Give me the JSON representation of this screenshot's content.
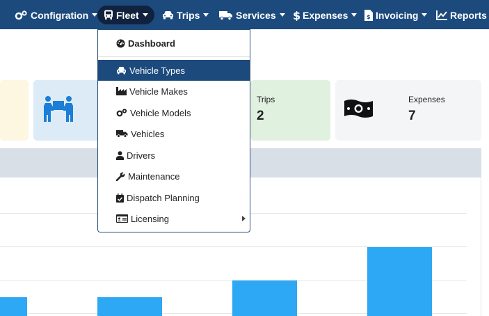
{
  "nav": {
    "items": [
      {
        "label": "Configration",
        "icon": "gears-icon"
      },
      {
        "label": "Fleet",
        "icon": "bus-icon"
      },
      {
        "label": "Trips",
        "icon": "car-icon"
      },
      {
        "label": "Services",
        "icon": "truck-icon"
      },
      {
        "label": "Expenses",
        "icon": "dollar-icon"
      },
      {
        "label": "Invoicing",
        "icon": "invoice-icon"
      },
      {
        "label": "Reports",
        "icon": "line-chart-icon"
      }
    ],
    "active": "Fleet",
    "bar_color": "#1c4a7d"
  },
  "fleet_menu": {
    "items": [
      {
        "label": "Dashboard",
        "icon": "dashboard-icon"
      },
      {
        "label": "Vehicle Types",
        "icon": "car-icon",
        "active": true
      },
      {
        "label": "Vehicle Makes",
        "icon": "industry-icon"
      },
      {
        "label": "Vehicle Models",
        "icon": "gears-icon"
      },
      {
        "label": "Vehicles",
        "icon": "truck-icon"
      },
      {
        "label": "Drivers",
        "icon": "user-icon"
      },
      {
        "label": "Maintenance",
        "icon": "wrench-icon"
      },
      {
        "label": "Dispatch Planning",
        "icon": "calendar-check-icon"
      },
      {
        "label": "Licensing",
        "icon": "id-card-icon",
        "has_submenu": true
      }
    ]
  },
  "cards": [
    {
      "label": "Trips",
      "value": "2",
      "bg": "#e1f1df"
    },
    {
      "label": "Expenses",
      "value": "7",
      "bg": "#f4f5f7",
      "icon": "money-bill-icon"
    }
  ],
  "card_icons": {
    "people_icon": "people-carry-icon"
  },
  "colors": {
    "accent": "#1c4a7d",
    "bar": "#2ca8f5",
    "panel_header": "#d8dfe7"
  }
}
